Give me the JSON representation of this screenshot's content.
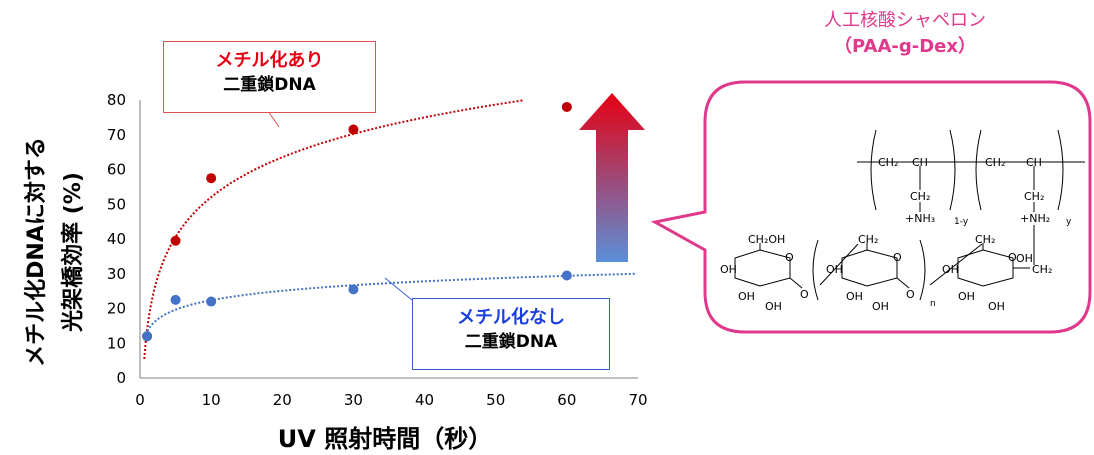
{
  "chart_data": {
    "type": "scatter",
    "xlabel": "UV 照射時間（秒）",
    "ylabel_line1": "メチル化DNAに対する",
    "ylabel_line2": "光架橋効率 (%)",
    "xlim": [
      0,
      70
    ],
    "ylim": [
      0,
      80
    ],
    "xticks": [
      0,
      10,
      20,
      30,
      40,
      50,
      60,
      70
    ],
    "yticks": [
      0,
      10,
      20,
      30,
      40,
      50,
      60,
      70,
      80
    ],
    "grid": false,
    "series": [
      {
        "name": "メチル化あり 二重鎖DNA",
        "color": "#c00000",
        "x": [
          1,
          5,
          10,
          30,
          60
        ],
        "y": [
          12,
          39.5,
          57.5,
          71.5,
          78
        ],
        "trendline": "logarithmic"
      },
      {
        "name": "メチル化なし 二重鎖DNA",
        "color": "#4472c4",
        "x": [
          1,
          5,
          10,
          30,
          60
        ],
        "y": [
          12,
          22.5,
          22,
          25.5,
          29.5
        ],
        "trendline": "logarithmic"
      }
    ]
  },
  "labels": {
    "methylated_l1": "メチル化あり",
    "methylated_l2": "二重鎖DNA",
    "unmethylated_l1": "メチル化なし",
    "unmethylated_l2": "二重鎖DNA"
  },
  "chaperone": {
    "title": "人工核酸シャペロン",
    "subtitle": "（PAA-g-Dex）",
    "chem_labels": {
      "ch2ch_a": "CH₂",
      "ch_a": "CH",
      "ch2_a": "CH₂",
      "nh3": "+NH₃",
      "sub_1y": "1-y",
      "ch2ch_b": "CH₂",
      "ch_b": "CH",
      "ch2_b": "CH₂",
      "nh2": "+NH₂",
      "sub_y": "y",
      "ch2oh": "CH₂OH",
      "ch2_c": "CH₂",
      "ch2_d": "CH₂",
      "oh1": "OH",
      "oh2": "OH",
      "oh3": "OH",
      "oh4": "OH",
      "oh5": "OH",
      "oh6": "OH",
      "oh7": "OH",
      "oh8": "OH",
      "oh9": "OH",
      "oh10": "OH",
      "o1": "O",
      "o2": "O",
      "o3": "O",
      "o4": "O",
      "o5": "O",
      "sub_n": "n",
      "ch2_e": "CH₂"
    }
  },
  "colors": {
    "arrow_top": "#e60012",
    "arrow_bottom": "#5b8fd9",
    "bubble": "#e0388a"
  }
}
